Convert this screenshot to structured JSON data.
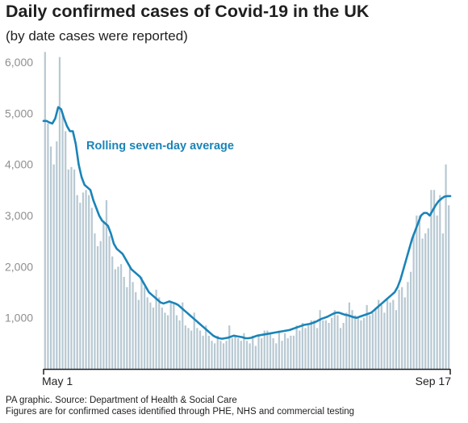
{
  "title": "Daily confirmed cases of Covid-19 in the UK",
  "subtitle": "(by date cases were reported)",
  "footer": {
    "line1": "PA graphic. Source: Department of Health & Social Care",
    "line2": "Figures are for confirmed cases identified through PHE, NHS and commercial testing"
  },
  "colors": {
    "bar": "#b8c9d3",
    "line": "#1a84b8",
    "axis": "#1f1f1f",
    "tick": "#8f8f8f"
  },
  "chart_data": {
    "type": "bar",
    "ylim": [
      0,
      6300
    ],
    "y_ticks": [
      1000,
      2000,
      3000,
      4000,
      5000,
      6000
    ],
    "y_tick_labels": [
      "1,000",
      "2,000",
      "3,000",
      "4,000",
      "5,000",
      "6,000"
    ],
    "x_labels": [
      "May 1",
      "Sep 17"
    ],
    "xlabel": "",
    "ylabel": "",
    "grid": false,
    "annotation": "Rolling seven-day average",
    "series": [
      {
        "kind": "bar",
        "values": [
          6200,
          4800,
          4350,
          4000,
          4450,
          6100,
          5000,
          4650,
          3900,
          3950,
          3900,
          3400,
          3250,
          3450,
          3500,
          3400,
          3150,
          2650,
          2400,
          2500,
          2900,
          3300,
          2600,
          2200,
          1950,
          2000,
          2050,
          1800,
          1600,
          2000,
          1700,
          1500,
          1350,
          1800,
          1600,
          1400,
          1300,
          1200,
          1550,
          1400,
          1200,
          1100,
          1050,
          1300,
          1300,
          1050,
          950,
          1300,
          850,
          800,
          750,
          1100,
          800,
          750,
          650,
          850,
          650,
          550,
          500,
          650,
          550,
          500,
          550,
          850,
          600,
          650,
          600,
          550,
          700,
          550,
          500,
          650,
          450,
          650,
          600,
          750,
          750,
          700,
          600,
          500,
          750,
          550,
          700,
          600,
          650,
          650,
          850,
          750,
          900,
          800,
          850,
          950,
          950,
          800,
          1150,
          950,
          950,
          900,
          1000,
          1150,
          1050,
          800,
          900,
          1100,
          1300,
          1150,
          1050,
          1000,
          950,
          1000,
          1250,
          1050,
          1100,
          1200,
          1350,
          1250,
          1100,
          1350,
          1300,
          1350,
          1150,
          1550,
          1600,
          1400,
          1700,
          1900,
          2650,
          3000,
          3000,
          2550,
          2650,
          2750,
          3500,
          3500,
          3000,
          3400,
          2650,
          4000,
          3200
        ],
        "n": 140
      },
      {
        "kind": "line",
        "name": "Rolling seven-day average",
        "values": [
          4850,
          4850,
          4820,
          4800,
          4900,
          5120,
          5080,
          4900,
          4750,
          4650,
          4650,
          4400,
          4000,
          3750,
          3600,
          3550,
          3500,
          3300,
          3150,
          3000,
          2900,
          2850,
          2800,
          2650,
          2450,
          2350,
          2300,
          2250,
          2150,
          2050,
          1950,
          1900,
          1850,
          1800,
          1700,
          1600,
          1500,
          1450,
          1400,
          1350,
          1300,
          1280,
          1300,
          1320,
          1300,
          1280,
          1250,
          1200,
          1150,
          1100,
          1050,
          1000,
          950,
          900,
          850,
          800,
          750,
          700,
          650,
          620,
          600,
          590,
          600,
          610,
          630,
          650,
          640,
          630,
          620,
          600,
          600,
          610,
          630,
          650,
          660,
          670,
          680,
          690,
          700,
          710,
          720,
          730,
          740,
          750,
          760,
          780,
          800,
          820,
          840,
          860,
          870,
          880,
          900,
          920,
          950,
          980,
          1000,
          1020,
          1050,
          1080,
          1100,
          1100,
          1080,
          1060,
          1050,
          1030,
          1010,
          1000,
          1020,
          1040,
          1060,
          1080,
          1100,
          1150,
          1200,
          1250,
          1300,
          1350,
          1400,
          1450,
          1500,
          1600,
          1750,
          1950,
          2150,
          2350,
          2550,
          2700,
          2850,
          3000,
          3050,
          3050,
          3000,
          3100,
          3200,
          3280,
          3330,
          3370,
          3380,
          3380
        ],
        "n": 140
      }
    ]
  }
}
